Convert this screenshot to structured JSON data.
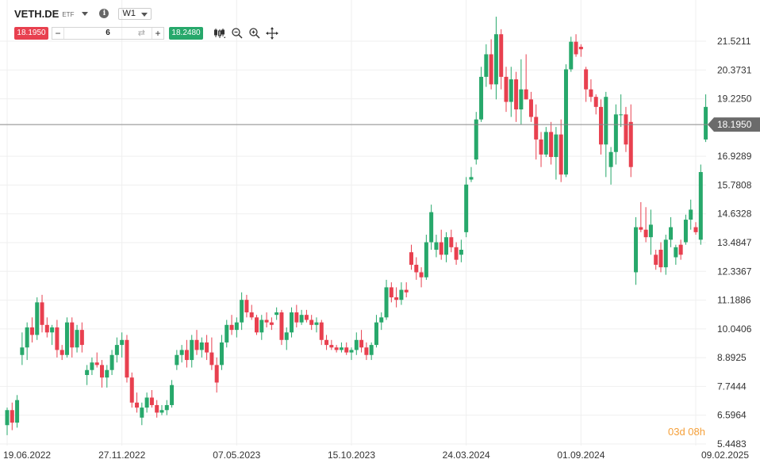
{
  "header": {
    "symbol": "VETH.DE",
    "symbol_type": "ETF",
    "info_glyph": "i",
    "timeframe": "W1"
  },
  "order": {
    "bid": "18.1950",
    "ask": "18.2480",
    "quantity": "6",
    "minus": "−",
    "plus": "+",
    "swap_glyph": "⇄"
  },
  "tools": [
    "candles-icon",
    "zoom-out-icon",
    "zoom-in-icon",
    "crosshair-icon"
  ],
  "colors": {
    "up": "#27a86b",
    "down": "#e8404f",
    "current_price_line": "#888888",
    "countdown": "#f5a03a"
  },
  "chart_data": {
    "type": "candlestick",
    "current_price": 18.195,
    "current_price_label": "18.1950",
    "countdown": "03d 08h",
    "ylim": [
      5.4,
      22.9
    ],
    "yticks": [
      21.5211,
      20.3731,
      19.225,
      16.9289,
      15.7808,
      14.6328,
      13.4847,
      12.3367,
      11.1886,
      10.0406,
      8.8925,
      7.7444,
      6.5964,
      5.4483
    ],
    "ytick_labels": [
      "21.5211",
      "20.3731",
      "19.2250",
      "16.9289",
      "15.7808",
      "14.6328",
      "13.4847",
      "12.3367",
      "11.1886",
      "10.0406",
      "8.8925",
      "7.7444",
      "6.5964",
      "5.4483"
    ],
    "xtick_labels": [
      "19.06.2022",
      "27.11.2022",
      "07.05.2023",
      "15.10.2023",
      "24.03.2024",
      "01.09.2024",
      "09.02.2025"
    ],
    "xtick_index": [
      0,
      23,
      46,
      69,
      92,
      115,
      138
    ],
    "candles": [
      [
        6.2,
        6.9,
        5.8,
        6.8
      ],
      [
        6.8,
        7.1,
        6.0,
        6.3
      ],
      [
        6.3,
        7.4,
        6.1,
        7.2
      ],
      [
        9.0,
        9.9,
        8.6,
        9.3
      ],
      [
        9.3,
        10.3,
        8.8,
        10.1
      ],
      [
        10.1,
        10.5,
        9.5,
        9.8
      ],
      [
        9.8,
        11.3,
        9.6,
        11.1
      ],
      [
        11.1,
        11.4,
        9.9,
        10.2
      ],
      [
        10.2,
        10.5,
        9.7,
        9.9
      ],
      [
        9.9,
        10.2,
        9.4,
        10.1
      ],
      [
        10.1,
        10.4,
        8.9,
        9.2
      ],
      [
        9.2,
        9.4,
        8.8,
        9.0
      ],
      [
        9.0,
        10.5,
        8.9,
        10.3
      ],
      [
        10.3,
        10.5,
        8.9,
        9.3
      ],
      [
        9.3,
        10.2,
        9.1,
        10.0
      ],
      [
        10.0,
        10.3,
        9.1,
        9.4
      ],
      [
        8.2,
        8.6,
        7.8,
        8.4
      ],
      [
        8.4,
        8.9,
        8.2,
        8.7
      ],
      [
        8.7,
        9.1,
        8.5,
        8.6
      ],
      [
        8.6,
        8.8,
        7.7,
        8.1
      ],
      [
        8.1,
        8.6,
        7.7,
        8.4
      ],
      [
        8.4,
        9.2,
        8.2,
        9.0
      ],
      [
        9.0,
        9.7,
        8.7,
        9.4
      ],
      [
        9.4,
        9.9,
        8.9,
        9.6
      ],
      [
        9.6,
        9.8,
        7.9,
        8.1
      ],
      [
        8.1,
        8.3,
        6.9,
        7.1
      ],
      [
        7.1,
        7.5,
        6.7,
        6.9
      ],
      [
        6.5,
        7.1,
        6.2,
        6.9
      ],
      [
        6.9,
        7.5,
        6.7,
        7.3
      ],
      [
        7.3,
        7.6,
        6.9,
        7.0
      ],
      [
        7.0,
        7.2,
        6.5,
        6.7
      ],
      [
        6.7,
        7.0,
        6.6,
        6.8
      ],
      [
        6.8,
        7.2,
        6.6,
        7.0
      ],
      [
        7.0,
        8.0,
        6.9,
        7.8
      ],
      [
        8.6,
        9.2,
        8.4,
        9.0
      ],
      [
        9.0,
        9.4,
        8.7,
        9.2
      ],
      [
        9.2,
        9.6,
        8.5,
        8.8
      ],
      [
        8.8,
        9.8,
        8.5,
        9.6
      ],
      [
        9.6,
        10.0,
        9.0,
        9.2
      ],
      [
        9.2,
        9.7,
        8.9,
        9.5
      ],
      [
        9.5,
        9.8,
        8.8,
        9.1
      ],
      [
        9.1,
        9.7,
        8.4,
        8.6
      ],
      [
        8.6,
        8.9,
        7.5,
        7.9
      ],
      [
        8.6,
        9.8,
        8.4,
        9.5
      ],
      [
        9.5,
        10.4,
        9.3,
        10.2
      ],
      [
        10.2,
        10.6,
        9.8,
        10.0
      ],
      [
        10.0,
        10.5,
        9.7,
        10.3
      ],
      [
        10.3,
        11.5,
        10.0,
        11.2
      ],
      [
        11.2,
        11.4,
        10.5,
        10.7
      ],
      [
        10.7,
        11.0,
        10.4,
        10.5
      ],
      [
        10.5,
        10.6,
        9.8,
        9.9
      ],
      [
        9.9,
        10.6,
        9.6,
        10.4
      ],
      [
        10.4,
        10.7,
        10.1,
        10.3
      ],
      [
        10.3,
        10.5,
        10.0,
        10.2
      ],
      [
        10.6,
        10.9,
        10.4,
        10.7
      ],
      [
        10.7,
        10.8,
        9.4,
        9.6
      ],
      [
        9.6,
        10.1,
        9.2,
        9.9
      ],
      [
        9.9,
        10.9,
        9.7,
        10.7
      ],
      [
        10.7,
        11.0,
        10.1,
        10.3
      ],
      [
        10.3,
        10.8,
        10.2,
        10.6
      ],
      [
        10.6,
        10.8,
        10.3,
        10.4
      ],
      [
        10.4,
        10.6,
        10.0,
        10.2
      ],
      [
        10.2,
        10.5,
        9.9,
        10.3
      ],
      [
        10.3,
        10.4,
        9.4,
        9.6
      ],
      [
        9.6,
        9.8,
        9.2,
        9.4
      ],
      [
        9.4,
        9.6,
        9.2,
        9.3
      ],
      [
        9.3,
        9.4,
        9.1,
        9.2
      ],
      [
        9.2,
        9.5,
        9.1,
        9.3
      ],
      [
        9.3,
        9.5,
        9.0,
        9.1
      ],
      [
        9.1,
        9.3,
        8.8,
        9.2
      ],
      [
        9.2,
        9.9,
        9.0,
        9.6
      ],
      [
        9.6,
        10.0,
        9.1,
        9.3
      ],
      [
        9.3,
        9.5,
        8.8,
        9.0
      ],
      [
        9.0,
        9.5,
        8.8,
        9.4
      ],
      [
        9.4,
        10.6,
        9.3,
        10.3
      ],
      [
        10.3,
        10.7,
        10.0,
        10.5
      ],
      [
        10.5,
        12.0,
        10.4,
        11.7
      ],
      [
        11.7,
        11.9,
        11.1,
        11.3
      ],
      [
        11.3,
        11.7,
        10.9,
        11.2
      ],
      [
        11.2,
        11.9,
        11.0,
        11.6
      ],
      [
        11.6,
        11.9,
        11.3,
        11.5
      ],
      [
        13.1,
        13.4,
        12.4,
        12.6
      ],
      [
        12.6,
        12.9,
        12.0,
        12.3
      ],
      [
        12.3,
        12.5,
        11.7,
        12.1
      ],
      [
        12.1,
        13.8,
        12.0,
        13.5
      ],
      [
        13.5,
        15.0,
        13.2,
        14.7
      ],
      [
        13.2,
        13.8,
        12.9,
        13.5
      ],
      [
        13.5,
        14.0,
        12.8,
        13.0
      ],
      [
        13.0,
        13.9,
        12.7,
        13.7
      ],
      [
        13.7,
        14.0,
        13.1,
        13.3
      ],
      [
        13.3,
        13.5,
        12.6,
        12.8
      ],
      [
        13.0,
        13.6,
        12.7,
        13.2
      ],
      [
        13.9,
        16.1,
        13.7,
        15.8
      ],
      [
        16.0,
        16.5,
        15.9,
        16.1
      ],
      [
        16.8,
        18.7,
        16.6,
        18.4
      ],
      [
        18.4,
        20.5,
        18.3,
        20.1
      ],
      [
        20.1,
        21.4,
        19.7,
        21.0
      ],
      [
        21.0,
        21.6,
        19.6,
        19.8
      ],
      [
        19.8,
        22.5,
        19.2,
        21.8
      ],
      [
        21.8,
        22.0,
        19.6,
        20.1
      ],
      [
        20.1,
        20.5,
        18.7,
        19.1
      ],
      [
        19.1,
        20.5,
        18.5,
        20.0
      ],
      [
        20.0,
        20.3,
        18.3,
        18.8
      ],
      [
        18.8,
        20.8,
        18.2,
        19.6
      ],
      [
        19.6,
        21.0,
        19.2,
        19.2
      ],
      [
        19.2,
        19.5,
        18.3,
        18.5
      ],
      [
        18.5,
        19.0,
        16.8,
        17.6
      ],
      [
        17.6,
        17.9,
        16.5,
        17.0
      ],
      [
        17.0,
        18.1,
        16.9,
        17.9
      ],
      [
        17.9,
        18.3,
        16.6,
        16.9
      ],
      [
        16.9,
        18.1,
        16.0,
        17.8
      ],
      [
        17.8,
        18.4,
        15.9,
        16.2
      ],
      [
        16.2,
        20.6,
        16.1,
        20.4
      ],
      [
        20.4,
        21.7,
        20.3,
        21.5
      ],
      [
        21.5,
        21.8,
        20.9,
        21.0
      ],
      [
        21.3,
        21.4,
        20.9,
        21.2
      ],
      [
        20.4,
        20.5,
        19.1,
        19.6
      ],
      [
        19.6,
        20.0,
        19.1,
        19.3
      ],
      [
        19.3,
        19.4,
        18.6,
        18.9
      ],
      [
        18.9,
        19.2,
        17.0,
        17.4
      ],
      [
        17.4,
        19.5,
        16.1,
        19.3
      ],
      [
        16.5,
        17.3,
        15.8,
        17.1
      ],
      [
        17.1,
        19.0,
        16.6,
        18.6
      ],
      [
        18.6,
        19.4,
        18.1,
        18.6
      ],
      [
        18.6,
        18.9,
        17.1,
        17.4
      ],
      [
        18.3,
        19.0,
        16.1,
        16.5
      ],
      [
        12.3,
        14.5,
        11.8,
        14.1
      ],
      [
        14.1,
        15.1,
        13.9,
        14.0
      ],
      [
        14.0,
        14.9,
        13.5,
        13.7
      ],
      [
        13.7,
        14.8,
        13.0,
        14.2
      ],
      [
        13.0,
        13.2,
        12.4,
        12.6
      ],
      [
        13.2,
        13.5,
        12.3,
        12.5
      ],
      [
        12.5,
        13.8,
        12.2,
        13.6
      ],
      [
        13.6,
        14.5,
        13.3,
        14.1
      ],
      [
        12.9,
        13.4,
        12.6,
        13.3
      ],
      [
        13.4,
        13.6,
        12.8,
        13.0
      ],
      [
        13.5,
        14.6,
        13.4,
        14.4
      ],
      [
        14.4,
        15.2,
        14.0,
        14.8
      ],
      [
        14.1,
        14.3,
        13.8,
        13.9
      ],
      [
        13.6,
        16.6,
        13.4,
        16.3
      ],
      [
        17.6,
        19.4,
        17.5,
        18.9
      ]
    ]
  }
}
